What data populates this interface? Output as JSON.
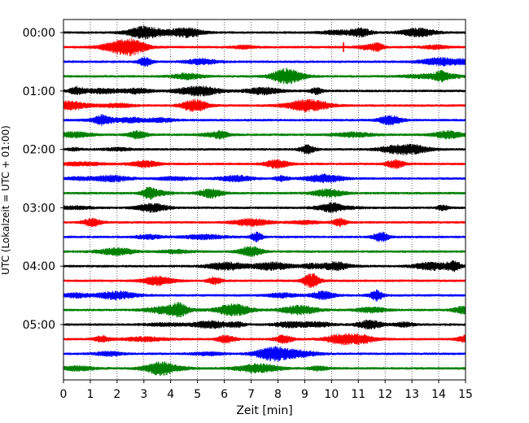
{
  "chart_data": {
    "type": "line",
    "subtype": "helicorder-seismogram",
    "title": "",
    "xlabel": "Zeit  [min]",
    "ylabel": "UTC (Lokalzeit = UTC + 01:00)",
    "xlim": [
      0,
      15
    ],
    "x_ticks": [
      "0",
      "1",
      "2",
      "3",
      "4",
      "5",
      "6",
      "7",
      "8",
      "9",
      "10",
      "11",
      "12",
      "13",
      "14",
      "15"
    ],
    "y_tick_labels": [
      "00:00",
      "01:00",
      "02:00",
      "03:00",
      "04:00",
      "05:00"
    ],
    "y_tick_trace_index": [
      0,
      4,
      8,
      12,
      16,
      20
    ],
    "trace_count": 24,
    "trace_interval_min": 15,
    "color_cycle": [
      "#000000",
      "#ff0000",
      "#0000ff",
      "#008000"
    ],
    "vertical_grid": "dotted",
    "notable_events": [
      {
        "trace": 1,
        "x_min": 10.45,
        "note": "spike"
      }
    ]
  }
}
